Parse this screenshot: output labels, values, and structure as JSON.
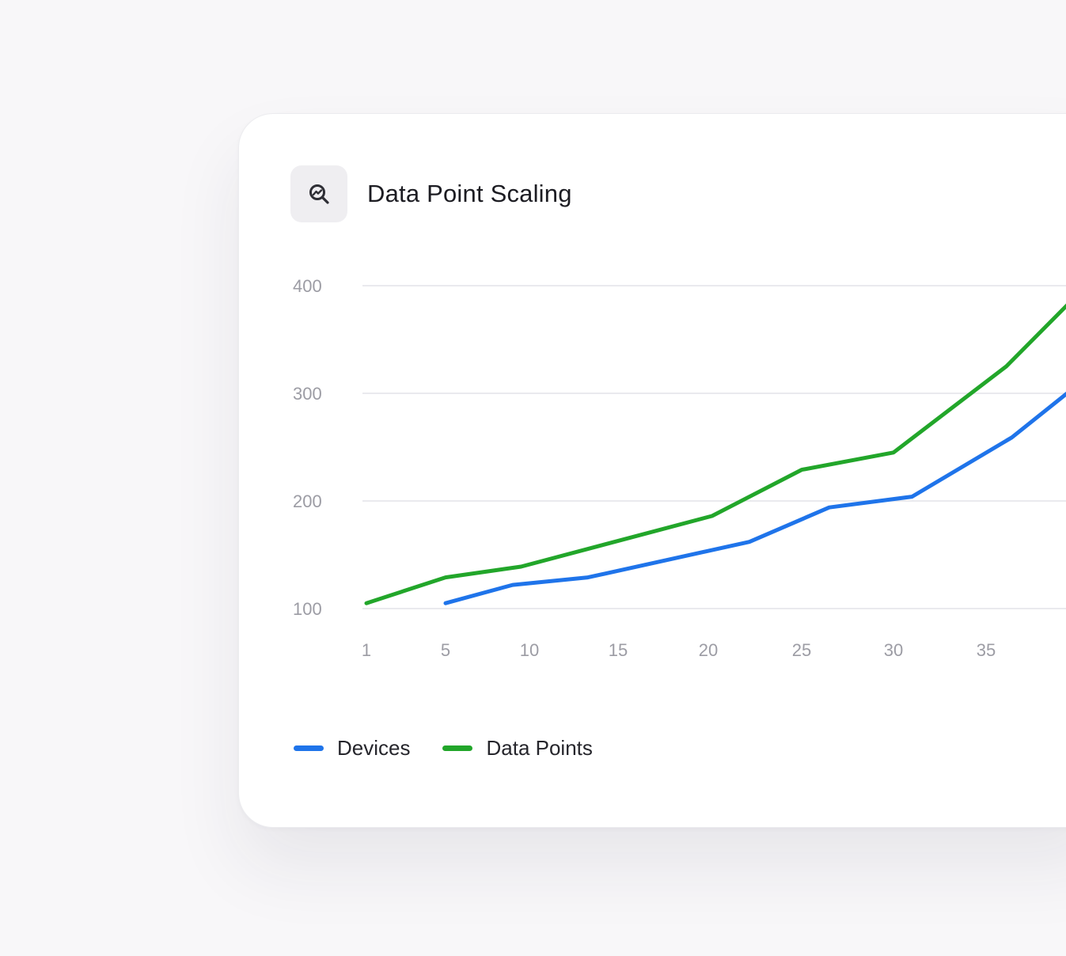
{
  "card": {
    "title": "Data Point Scaling",
    "icon": "chart-search-icon"
  },
  "colors": {
    "devices": "#1f74ea",
    "data_points": "#22a62a",
    "grid": "#e4e4e8",
    "tick_text": "#9c9ca4"
  },
  "chart_data": {
    "type": "line",
    "title": "Data Point Scaling",
    "xlabel": "",
    "ylabel": "",
    "x_ticks": [
      1,
      5,
      10,
      15,
      20,
      25,
      30,
      35
    ],
    "y_ticks": [
      100,
      200,
      300,
      400
    ],
    "xlim": [
      1,
      40
    ],
    "ylim": [
      100,
      400
    ],
    "grid": "horizontal",
    "legend_position": "bottom-left",
    "series": [
      {
        "name": "Devices",
        "color": "#1f74ea",
        "points": [
          [
            5,
            105
          ],
          [
            9,
            122
          ],
          [
            13.3,
            129
          ],
          [
            22.2,
            162
          ],
          [
            26.5,
            194
          ],
          [
            31,
            204
          ],
          [
            36.4,
            259
          ],
          [
            40,
            308
          ]
        ]
      },
      {
        "name": "Data Points",
        "color": "#22a62a",
        "points": [
          [
            1,
            105
          ],
          [
            5,
            129
          ],
          [
            9.5,
            139
          ],
          [
            20.2,
            186
          ],
          [
            25,
            229
          ],
          [
            30,
            245
          ],
          [
            36.1,
            325
          ],
          [
            40,
            392
          ]
        ]
      }
    ]
  }
}
